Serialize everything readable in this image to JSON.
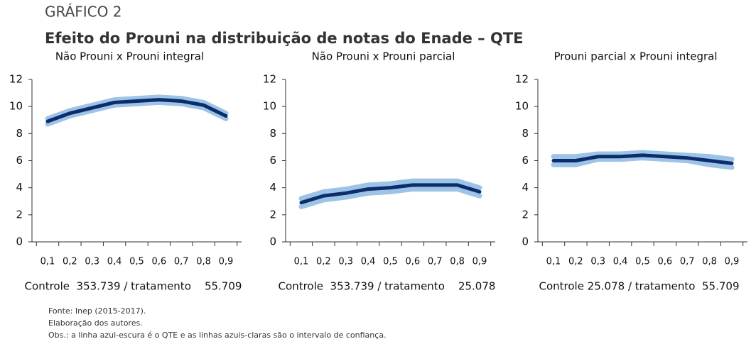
{
  "header": {
    "label": "GRÁFICO 2",
    "title": "Efeito do Prouni na distribuição de notas do Enade – QTE"
  },
  "chart_data": [
    {
      "type": "line",
      "title": "Não Prouni x Prouni integral",
      "categories": [
        "0,1",
        "0,2",
        "0,3",
        "0,4",
        "0,5",
        "0,6",
        "0,7",
        "0,8",
        "0,9"
      ],
      "series": [
        {
          "color": "#9dc3e6",
          "values": [
            9.1,
            9.7,
            10.1,
            10.5,
            10.6,
            10.7,
            10.6,
            10.3,
            9.5
          ]
        },
        {
          "color": "#9dc3e6",
          "values": [
            8.7,
            9.3,
            9.7,
            10.1,
            10.2,
            10.3,
            10.2,
            9.9,
            9.1
          ]
        },
        {
          "color": "#0b2d6b",
          "values": [
            8.9,
            9.5,
            9.9,
            10.3,
            10.4,
            10.5,
            10.4,
            10.1,
            9.3
          ]
        }
      ],
      "ylim": [
        0,
        12
      ],
      "yticks": [
        0,
        2,
        4,
        6,
        8,
        10,
        12
      ],
      "caption": "Controle  353.739 / tratamento    55.709"
    },
    {
      "type": "line",
      "title": "Não Prouni x Prouni parcial",
      "categories": [
        "0,1",
        "0,2",
        "0,3",
        "0,4",
        "0,5",
        "0,6",
        "0,7",
        "0,8",
        "0,9"
      ],
      "series": [
        {
          "color": "#9dc3e6",
          "values": [
            3.2,
            3.7,
            3.9,
            4.2,
            4.3,
            4.5,
            4.5,
            4.5,
            4.0
          ]
        },
        {
          "color": "#9dc3e6",
          "values": [
            2.6,
            3.1,
            3.3,
            3.6,
            3.7,
            3.9,
            3.9,
            3.9,
            3.4
          ]
        },
        {
          "color": "#0b2d6b",
          "values": [
            2.9,
            3.4,
            3.6,
            3.9,
            4.0,
            4.2,
            4.2,
            4.2,
            3.7
          ]
        }
      ],
      "ylim": [
        0,
        12
      ],
      "yticks": [
        0,
        2,
        4,
        6,
        8,
        10,
        12
      ],
      "caption": "Controle  353.739 / tratamento    25.078"
    },
    {
      "type": "line",
      "title": "Prouni parcial x Prouni integral",
      "categories": [
        "0,1",
        "0,2",
        "0,3",
        "0,4",
        "0,5",
        "0,6",
        "0,7",
        "0,8",
        "0,9"
      ],
      "series": [
        {
          "color": "#9dc3e6",
          "values": [
            6.3,
            6.3,
            6.5,
            6.5,
            6.6,
            6.5,
            6.4,
            6.3,
            6.1
          ]
        },
        {
          "color": "#9dc3e6",
          "values": [
            5.7,
            5.7,
            6.1,
            6.1,
            6.2,
            6.1,
            6.0,
            5.7,
            5.5
          ]
        },
        {
          "color": "#0b2d6b",
          "values": [
            6.0,
            6.0,
            6.3,
            6.3,
            6.4,
            6.3,
            6.2,
            6.0,
            5.8
          ]
        }
      ],
      "ylim": [
        0,
        12
      ],
      "yticks": [
        0,
        2,
        4,
        6,
        8,
        10,
        12
      ],
      "caption": "Controle 25.078 / tratamento  55.709"
    }
  ],
  "notes": [
    "Fonte: Inep (2015-2017).",
    "Elaboração dos autores.",
    "Obs.: a linha azul-escura é o QTE e as linhas azuis-claras são o intervalo de confiança."
  ]
}
